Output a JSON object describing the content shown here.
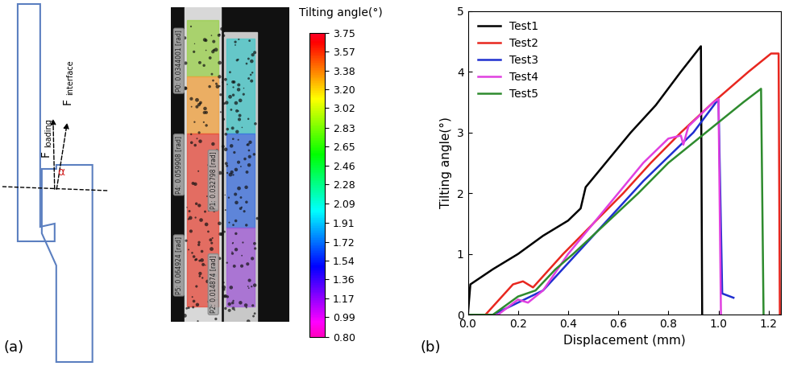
{
  "chart_data": {
    "type": "line",
    "panel_label": "(b)",
    "x_label": "Displacement (mm)",
    "y_label": "Tilting angle(°)",
    "xlim": [
      0,
      1.25
    ],
    "xticks": [
      {
        "value": 0,
        "label": "0.0"
      },
      0.2,
      0.4,
      0.6,
      0.8,
      {
        "value": 1,
        "label": "1.0"
      },
      1.2
    ],
    "ylim": [
      0,
      5
    ],
    "yticks": [
      0,
      1,
      2,
      3,
      4,
      5
    ],
    "legend": "upper left",
    "series": [
      {
        "name": "Test1",
        "color": "#000000",
        "x": [
          0,
          0.01,
          0.1,
          0.2,
          0.3,
          0.4,
          0.45,
          0.47,
          0.55,
          0.65,
          0.75,
          0.85,
          0.93,
          0.935
        ],
        "values": [
          0,
          0.5,
          0.75,
          1.0,
          1.3,
          1.55,
          1.75,
          2.1,
          2.5,
          3.0,
          3.45,
          4.0,
          4.42,
          0
        ]
      },
      {
        "name": "Test2",
        "color": "#e8271f",
        "x": [
          0,
          0.07,
          0.18,
          0.22,
          0.26,
          0.38,
          0.5,
          0.62,
          0.73,
          0.85,
          0.98,
          1.12,
          1.21,
          1.24,
          1.245
        ],
        "values": [
          0,
          0,
          0.5,
          0.55,
          0.45,
          1.0,
          1.5,
          2.0,
          2.5,
          3.0,
          3.5,
          4.0,
          4.3,
          4.3,
          0
        ]
      },
      {
        "name": "Test3",
        "color": "#1f2fd0",
        "x": [
          0,
          0.1,
          0.2,
          0.3,
          0.5,
          0.7,
          0.9,
          1.0,
          1.015,
          1.06
        ],
        "values": [
          0,
          0,
          0.2,
          0.4,
          1.3,
          2.2,
          3.0,
          3.55,
          0.35,
          0.28
        ]
      },
      {
        "name": "Test4",
        "color": "#e040e0",
        "x": [
          0,
          0.12,
          0.2,
          0.24,
          0.3,
          0.4,
          0.5,
          0.6,
          0.7,
          0.8,
          0.85,
          0.86,
          0.88,
          0.98,
          1.0,
          1.01
        ],
        "values": [
          0,
          0,
          0.25,
          0.2,
          0.4,
          1.0,
          1.5,
          2.0,
          2.5,
          2.9,
          2.95,
          2.8,
          3.1,
          3.5,
          3.55,
          0
        ]
      },
      {
        "name": "Test5",
        "color": "#2e8b2e",
        "x": [
          0,
          0.1,
          0.2,
          0.27,
          0.35,
          0.42,
          0.55,
          0.68,
          0.8,
          0.95,
          1.1,
          1.17,
          1.18
        ],
        "values": [
          0,
          0,
          0.3,
          0.4,
          0.75,
          1.0,
          1.5,
          2.0,
          2.5,
          3.0,
          3.5,
          3.72,
          0
        ]
      }
    ]
  },
  "diagram": {
    "panel_label": "(a)",
    "forces": [
      {
        "main": "F",
        "subscript": "loading"
      },
      {
        "main": "F",
        "subscript": "interface"
      }
    ],
    "angle": "α",
    "point_labels": [
      "P0: 0.0344001 [rad]",
      "P4: 0.059908 [rad]",
      "P1: 0.032798 [rad]",
      "P5: 0.064924 [rad]",
      "P2: 0.014874 [rad]"
    ],
    "colorbar": {
      "title": "Tilting angle(°)",
      "range": [
        0.8,
        3.75
      ],
      "ticks": [
        {
          "value": 0.8,
          "label": "0.80"
        },
        0.99,
        1.17,
        1.36,
        1.54,
        1.72,
        1.91,
        2.09,
        2.28,
        2.46,
        2.65,
        2.83,
        3.02,
        {
          "value": 3.2,
          "label": "3.20"
        },
        3.38,
        3.57,
        3.75
      ]
    }
  }
}
